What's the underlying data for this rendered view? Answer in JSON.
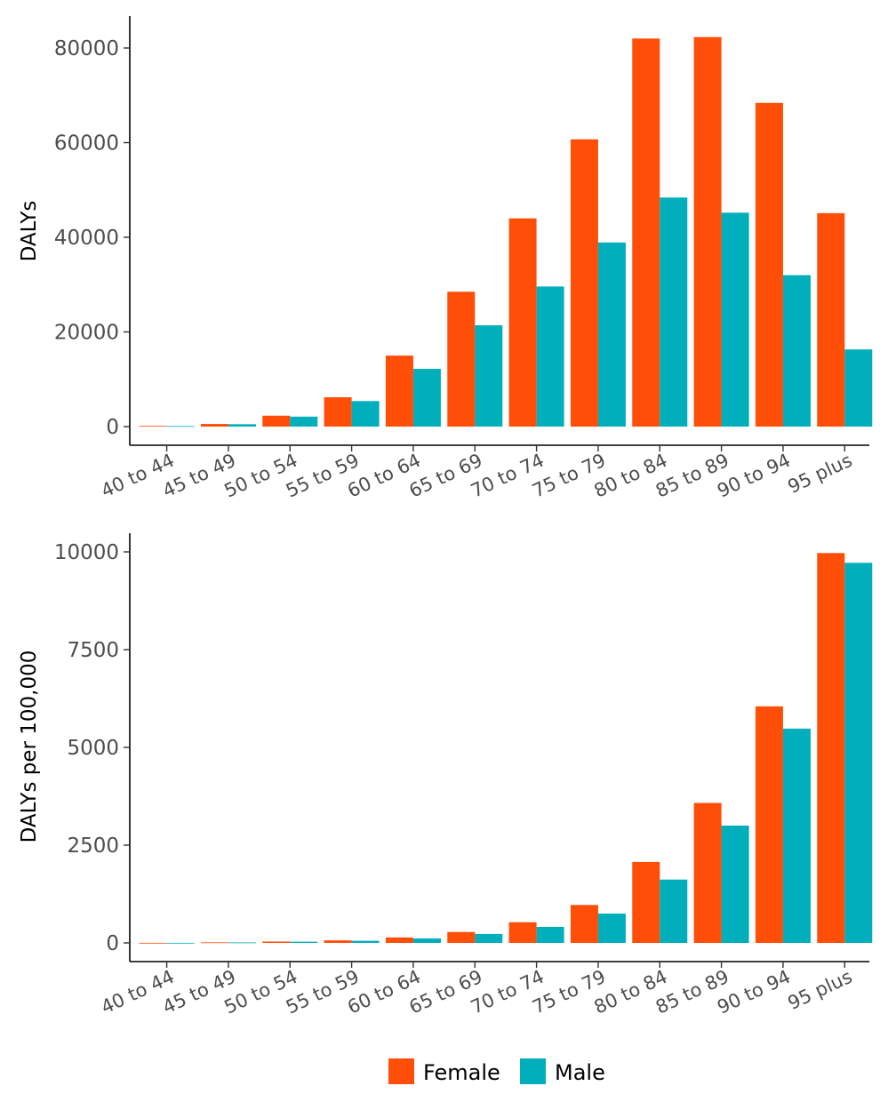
{
  "chart_data": [
    {
      "type": "bar",
      "categories": [
        "40 to 44",
        "45 to 49",
        "50 to 54",
        "55 to 59",
        "60 to 64",
        "65 to 69",
        "70 to 74",
        "75 to 79",
        "80 to 84",
        "85 to 89",
        "90 to 94",
        "95 plus"
      ],
      "series": [
        {
          "name": "Female",
          "color": "#FF4E07",
          "values": [
            150,
            550,
            2300,
            6200,
            15000,
            28500,
            44000,
            60700,
            82000,
            82300,
            68400,
            45100
          ]
        },
        {
          "name": "Male",
          "color": "#00AFBB",
          "values": [
            100,
            500,
            2100,
            5400,
            12200,
            21400,
            29600,
            38900,
            48400,
            45200,
            32000,
            16300
          ]
        }
      ],
      "xlabel": "",
      "ylabel": "DALYs",
      "ylim": [
        0,
        86000
      ],
      "yticks": [
        "0",
        "20000",
        "40000",
        "60000",
        "80000"
      ],
      "ytick_values": [
        0,
        20000,
        40000,
        60000,
        80000
      ],
      "grid": false
    },
    {
      "type": "bar",
      "categories": [
        "40 to 44",
        "45 to 49",
        "50 to 54",
        "55 to 59",
        "60 to 64",
        "65 to 69",
        "70 to 74",
        "75 to 79",
        "80 to 84",
        "85 to 89",
        "90 to 94",
        "95 plus"
      ],
      "series": [
        {
          "name": "Female",
          "color": "#FF4E07",
          "values": [
            2,
            14,
            35,
            65,
            140,
            280,
            530,
            970,
            2070,
            3580,
            6050,
            9970
          ]
        },
        {
          "name": "Male",
          "color": "#00AFBB",
          "values": [
            2,
            12,
            30,
            55,
            115,
            230,
            410,
            750,
            1620,
            3000,
            5480,
            9720
          ]
        }
      ],
      "xlabel": "",
      "ylabel": "DALYs per 100,000",
      "ylim": [
        0,
        10450
      ],
      "yticks": [
        "0",
        "2500",
        "5000",
        "7500",
        "10000"
      ],
      "ytick_values": [
        0,
        2500,
        5000,
        7500,
        10000
      ],
      "grid": false
    }
  ],
  "legend": {
    "position": "bottom",
    "items": [
      {
        "label": "Female",
        "color": "#FF4E07"
      },
      {
        "label": "Male",
        "color": "#00AFBB"
      }
    ]
  }
}
